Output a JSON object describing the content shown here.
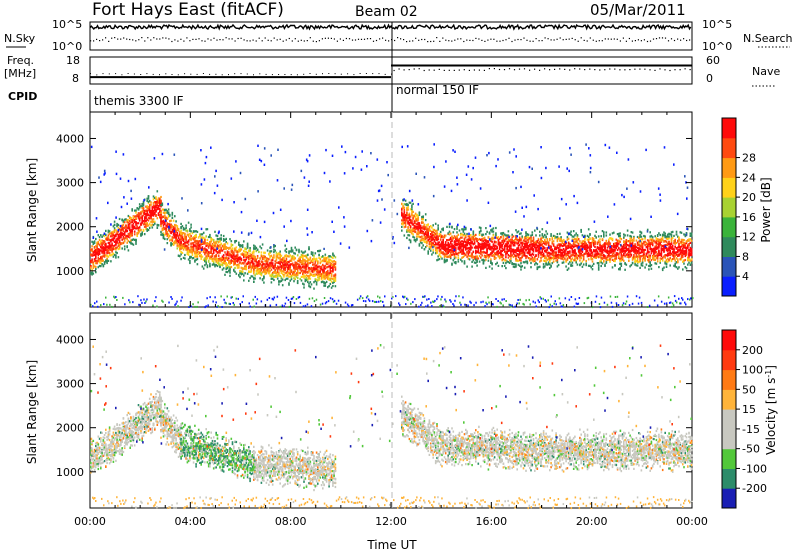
{
  "header": {
    "station": "Fort Hays East (fitACF)",
    "beam": "Beam 02",
    "date": "05/Mar/2011"
  },
  "top_panel": {
    "left_labels": [
      "N.Sky",
      "Freq.",
      "[MHz]",
      "CPID"
    ],
    "right_labels": [
      "N.Search",
      "Nave"
    ],
    "sky_ticks": [
      "10^5",
      "10^0"
    ],
    "search_ticks": [
      "10^5",
      "10^0"
    ],
    "freq_ticks": [
      "18",
      "8"
    ],
    "nave_ticks": [
      "60",
      "0"
    ],
    "cpid_segments": [
      {
        "label": "themis 3300 IF",
        "start_hour": 0,
        "end_hour": 12
      },
      {
        "label": "normal 150 IF",
        "start_hour": 12,
        "end_hour": 24
      }
    ],
    "freq_mhz": [
      {
        "start_hour": 0,
        "end_hour": 12,
        "value": 10.2
      },
      {
        "start_hour": 12,
        "end_hour": 24,
        "value": 15.5
      }
    ]
  },
  "chart_data": [
    {
      "type": "heatmap",
      "name": "power",
      "ylabel": "Slant Range [km]",
      "xlabel": "",
      "xlim_hours": [
        0,
        24
      ],
      "ylim": [
        180,
        4600
      ],
      "yticks": [
        1000,
        2000,
        3000,
        4000
      ],
      "colorbar_label": "Power [dB]",
      "colorbar_ticks": [
        "4",
        "8",
        "12",
        "16",
        "20",
        "24",
        "28"
      ],
      "colorbar_colors": [
        "#0a1fff",
        "#2a54b8",
        "#2f8a5c",
        "#3ab33a",
        "#a8d232",
        "#ffd21a",
        "#ff9a14",
        "#ff4a10",
        "#ff0a0a"
      ],
      "bands": [
        {
          "x0": 0.0,
          "x1": 2.8,
          "r0": 1300,
          "r1": 2500,
          "level": 0.55
        },
        {
          "x0": 2.8,
          "x1": 3.6,
          "r0": 2200,
          "r1": 1700,
          "level": 0.5
        },
        {
          "x0": 3.6,
          "x1": 6.5,
          "r0": 1700,
          "r1": 1200,
          "level": 0.45
        },
        {
          "x0": 6.5,
          "x1": 9.8,
          "r0": 1200,
          "r1": 1050,
          "level": 0.45
        },
        {
          "x0": 12.4,
          "x1": 14.0,
          "r0": 2300,
          "r1": 1600,
          "level": 0.5
        },
        {
          "x0": 14.0,
          "x1": 18.0,
          "r0": 1600,
          "r1": 1500,
          "level": 0.6
        },
        {
          "x0": 18.0,
          "x1": 24.0,
          "r0": 1500,
          "r1": 1500,
          "level": 0.55
        }
      ]
    },
    {
      "type": "heatmap",
      "name": "velocity",
      "ylabel": "Slant Range [km]",
      "xlabel": "Time UT",
      "xlim_hours": [
        0,
        24
      ],
      "ylim": [
        180,
        4600
      ],
      "yticks": [
        1000,
        2000,
        3000,
        4000
      ],
      "xticks": [
        "00:00",
        "04:00",
        "08:00",
        "12:00",
        "16:00",
        "20:00",
        "00:00"
      ],
      "colorbar_label": "Velocity [m s^-1]",
      "colorbar_ticks": [
        "200",
        "100",
        "50",
        "15",
        "-15",
        "-50",
        "-100",
        "-200"
      ],
      "colorbar_colors": [
        "#1a1fb4",
        "#2c8c6a",
        "#52c83a",
        "#c8c8c0",
        "#c8c8c0",
        "#ffb43a",
        "#ff7a14",
        "#ff3a10",
        "#ff0a0a"
      ],
      "bands": [
        {
          "x0": 0.0,
          "x1": 2.8,
          "r0": 1300,
          "r1": 2500,
          "level": 0.55
        },
        {
          "x0": 2.8,
          "x1": 3.6,
          "r0": 2200,
          "r1": 1700,
          "level": 0.5
        },
        {
          "x0": 3.6,
          "x1": 6.5,
          "r0": 1700,
          "r1": 1200,
          "level": 0.2
        },
        {
          "x0": 6.5,
          "x1": 9.8,
          "r0": 1200,
          "r1": 1050,
          "level": 0.45
        },
        {
          "x0": 12.4,
          "x1": 14.0,
          "r0": 2300,
          "r1": 1600,
          "level": 0.4
        },
        {
          "x0": 14.0,
          "x1": 18.0,
          "r0": 1600,
          "r1": 1500,
          "level": 0.4
        },
        {
          "x0": 18.0,
          "x1": 24.0,
          "r0": 1500,
          "r1": 1500,
          "level": 0.4
        }
      ]
    }
  ]
}
